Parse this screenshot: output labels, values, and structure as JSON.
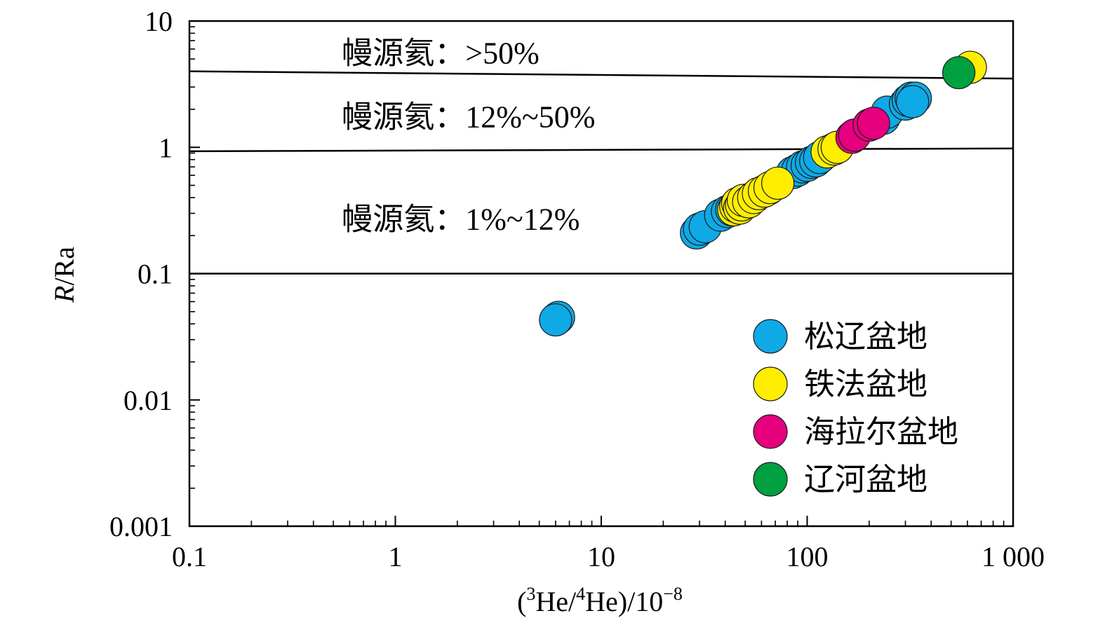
{
  "chart_data": {
    "type": "scatter",
    "x_scale": "log",
    "y_scale": "log",
    "xlim": [
      0.1,
      1000
    ],
    "ylim": [
      0.001,
      10
    ],
    "xlabel": {
      "pre": "(",
      "sup1": "3",
      "mid": "He/",
      "sup2": "4",
      "post": "He)/10",
      "sup3": "−8"
    },
    "ylabel": {
      "italic": "R",
      "rest": "/Ra"
    },
    "x_ticks": [
      {
        "v": 0.1,
        "label": "0.1"
      },
      {
        "v": 1,
        "label": "1"
      },
      {
        "v": 10,
        "label": "10"
      },
      {
        "v": 100,
        "label": "100"
      },
      {
        "v": 1000,
        "label": "1 000"
      }
    ],
    "y_ticks": [
      {
        "v": 0.001,
        "label": "0.001"
      },
      {
        "v": 0.01,
        "label": "0.01"
      },
      {
        "v": 0.1,
        "label": "0.1"
      },
      {
        "v": 1,
        "label": "1"
      },
      {
        "v": 10,
        "label": "10"
      }
    ],
    "grid": false,
    "legend_position": "bottom-right",
    "boundaries": [
      {
        "x": [
          0.1,
          1000
        ],
        "y": [
          4.0,
          3.5
        ]
      },
      {
        "x": [
          0.1,
          1000
        ],
        "y": [
          0.93,
          0.98
        ]
      },
      {
        "x": [
          0.1,
          1000
        ],
        "y": [
          0.1,
          0.1
        ]
      }
    ],
    "zone_labels": [
      {
        "text": "幔源氦：>50%",
        "x": 0.55,
        "y": 5.6
      },
      {
        "text": "幔源氦：12%~50%",
        "x": 0.55,
        "y": 1.75
      },
      {
        "text": "幔源氦：1%~12%",
        "x": 0.55,
        "y": 0.27
      }
    ],
    "series": [
      {
        "name": "松辽盆地",
        "color": "#0fa9e6",
        "points": [
          [
            6.1,
            0.044
          ],
          [
            6.2,
            0.045
          ],
          [
            6.0,
            0.043
          ],
          [
            29,
            0.21
          ],
          [
            30,
            0.225
          ],
          [
            32,
            0.235
          ],
          [
            38,
            0.29
          ],
          [
            41,
            0.31
          ],
          [
            43,
            0.32
          ],
          [
            65,
            0.47
          ],
          [
            85,
            0.63
          ],
          [
            90,
            0.66
          ],
          [
            95,
            0.7
          ],
          [
            100,
            0.72
          ],
          [
            105,
            0.76
          ],
          [
            110,
            0.78
          ],
          [
            115,
            0.83
          ],
          [
            235,
            1.7
          ],
          [
            245,
            1.9
          ],
          [
            300,
            2.2
          ],
          [
            310,
            2.35
          ],
          [
            320,
            2.45
          ],
          [
            335,
            2.45
          ],
          [
            325,
            2.3
          ]
        ]
      },
      {
        "name": "铁法盆地",
        "color": "#ffee00",
        "points": [
          [
            44,
            0.32
          ],
          [
            45,
            0.34
          ],
          [
            46,
            0.36
          ],
          [
            47,
            0.33
          ],
          [
            48,
            0.35
          ],
          [
            49,
            0.38
          ],
          [
            52,
            0.37
          ],
          [
            55,
            0.4
          ],
          [
            58,
            0.43
          ],
          [
            62,
            0.45
          ],
          [
            66,
            0.48
          ],
          [
            72,
            0.52
          ],
          [
            125,
            0.92
          ],
          [
            135,
            0.97
          ],
          [
            140,
            1.0
          ],
          [
            620,
            4.3
          ]
        ]
      },
      {
        "name": "海拉尔盆地",
        "color": "#e6007e",
        "points": [
          [
            165,
            1.2
          ],
          [
            170,
            1.25
          ],
          [
            200,
            1.5
          ],
          [
            210,
            1.55
          ]
        ]
      },
      {
        "name": "辽河盆地",
        "color": "#00a040",
        "points": [
          [
            545,
            3.9
          ]
        ]
      }
    ]
  }
}
